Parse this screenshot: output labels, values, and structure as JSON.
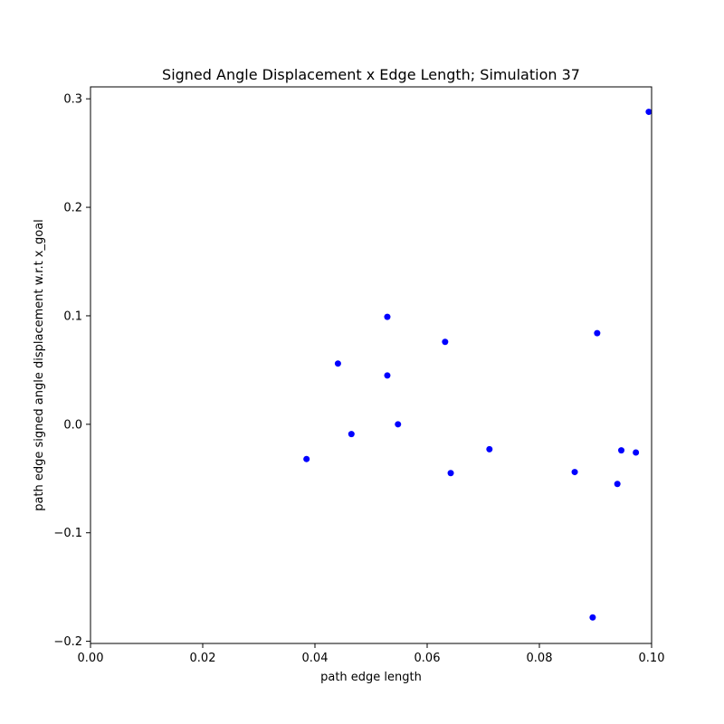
{
  "chart_data": {
    "type": "scatter",
    "title": "Signed Angle Displacement x Edge Length; Simulation 37",
    "xlabel": "path edge length",
    "ylabel": "path edge signed angle displacement w.r.t x_goal",
    "xlim": [
      0.0,
      0.1
    ],
    "ylim": [
      -0.202,
      0.311
    ],
    "grid": false,
    "marker_color": "#0000ff",
    "x_ticks": [
      {
        "value": 0.0,
        "label": "0.00"
      },
      {
        "value": 0.02,
        "label": "0.02"
      },
      {
        "value": 0.04,
        "label": "0.04"
      },
      {
        "value": 0.06,
        "label": "0.06"
      },
      {
        "value": 0.08,
        "label": "0.08"
      },
      {
        "value": 0.1,
        "label": "0.10"
      }
    ],
    "y_ticks": [
      {
        "value": -0.2,
        "label": "−0.2"
      },
      {
        "value": -0.1,
        "label": "−0.1"
      },
      {
        "value": 0.0,
        "label": "0.0"
      },
      {
        "value": 0.1,
        "label": "0.1"
      },
      {
        "value": 0.2,
        "label": "0.2"
      },
      {
        "value": 0.3,
        "label": "0.3"
      }
    ],
    "points": [
      {
        "x": 0.0385,
        "y": -0.032
      },
      {
        "x": 0.0441,
        "y": 0.056
      },
      {
        "x": 0.0465,
        "y": -0.009
      },
      {
        "x": 0.0529,
        "y": 0.099
      },
      {
        "x": 0.0529,
        "y": 0.045
      },
      {
        "x": 0.0548,
        "y": 0.0
      },
      {
        "x": 0.0632,
        "y": 0.076
      },
      {
        "x": 0.0642,
        "y": -0.045
      },
      {
        "x": 0.0711,
        "y": -0.023
      },
      {
        "x": 0.0863,
        "y": -0.044
      },
      {
        "x": 0.0895,
        "y": -0.178
      },
      {
        "x": 0.0903,
        "y": 0.084
      },
      {
        "x": 0.0939,
        "y": -0.055
      },
      {
        "x": 0.0946,
        "y": -0.024
      },
      {
        "x": 0.0972,
        "y": -0.026
      },
      {
        "x": 0.0995,
        "y": 0.288
      }
    ]
  }
}
